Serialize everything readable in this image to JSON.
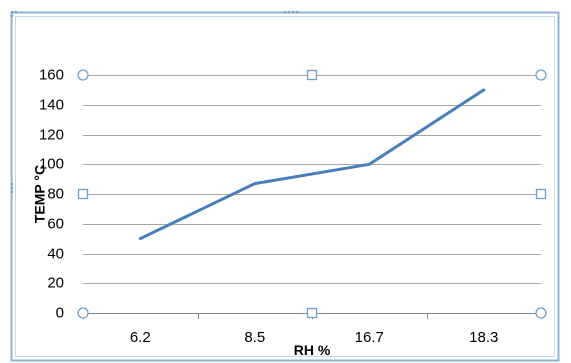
{
  "chart_data": {
    "type": "line",
    "categories": [
      "6.2",
      "8.5",
      "16.7",
      "18.3"
    ],
    "series": [
      {
        "values": [
          50,
          87,
          100,
          150
        ]
      }
    ],
    "xlabel": "RH %",
    "ylabel": "TEMP °C",
    "ylim": [
      0,
      160
    ],
    "yticks": [
      0,
      20,
      40,
      60,
      80,
      100,
      120,
      140,
      160
    ],
    "grid": true,
    "legend": "none",
    "line_color": "#4a7ebb",
    "grid_color": "#a6a6a6",
    "selection_color": "#6f9fc8"
  }
}
